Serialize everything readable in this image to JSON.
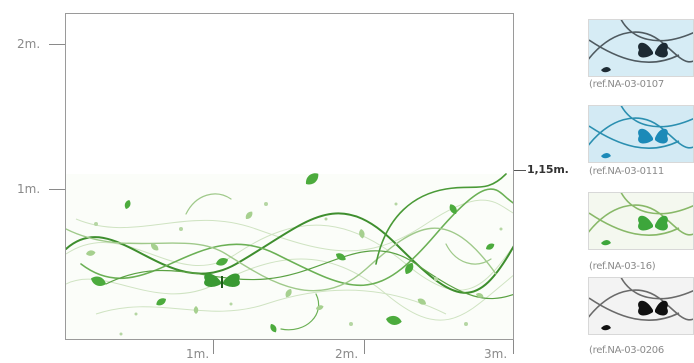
{
  "axis": {
    "y_labels": [
      "2m.",
      "1m."
    ],
    "x_labels": [
      "1m.",
      "2m.",
      "3m."
    ]
  },
  "height_marker": "1,15m.",
  "thumbnails": [
    {
      "ref": "(ref.NA-03-0107",
      "bg": "#d6ecf5",
      "line": "#4f5a60",
      "butterfly": "#1d2a33"
    },
    {
      "ref": "(ref.NA-03-0111",
      "bg": "#d3eaf4",
      "line": "#2b8fb0",
      "butterfly": "#1c8ab8"
    },
    {
      "ref": "(ref.NA-03-16)",
      "bg": "#f4f8ef",
      "line": "#88b868",
      "butterfly": "#3da63b"
    },
    {
      "ref": "(ref.NA-03-0206",
      "bg": "#f3f3f3",
      "line": "#6a6a6a",
      "butterfly": "#111111"
    }
  ],
  "colors": {
    "vine_dark": "#3e8e2e",
    "vine_light": "#9fc98a",
    "leaf": "#4cab3d"
  }
}
